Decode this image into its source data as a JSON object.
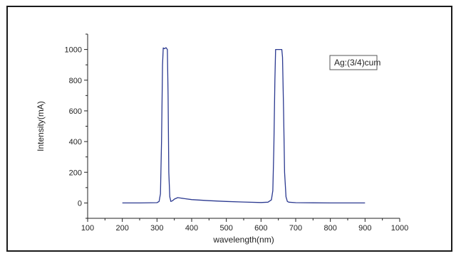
{
  "chart_data": {
    "type": "line",
    "xlabel": "wavelength(nm)",
    "ylabel": "Intensity(mA)",
    "xlim": [
      100,
      1000
    ],
    "ylim": [
      -100,
      1100
    ],
    "x_ticks": [
      100,
      200,
      300,
      400,
      500,
      600,
      700,
      800,
      900,
      1000
    ],
    "y_ticks": [
      0,
      200,
      400,
      600,
      800,
      1000
    ],
    "grid": false,
    "legend_position": "top-right",
    "series": [
      {
        "name": "Ag:(3/4)cum",
        "color": "#2b3990",
        "x": [
          200,
          250,
          300,
          306,
          310,
          313,
          316,
          318,
          322,
          326,
          330,
          332,
          334,
          337,
          340,
          345,
          350,
          360,
          380,
          400,
          450,
          500,
          550,
          600,
          620,
          630,
          634,
          637,
          640,
          642,
          660,
          662,
          665,
          668,
          672,
          676,
          680,
          700,
          750,
          800,
          850,
          900
        ],
        "y": [
          0,
          0,
          2,
          10,
          60,
          400,
          900,
          1010,
          1005,
          1012,
          1000,
          700,
          200,
          40,
          10,
          15,
          25,
          35,
          28,
          22,
          15,
          10,
          6,
          3,
          5,
          20,
          80,
          350,
          800,
          1000,
          1000,
          950,
          600,
          200,
          40,
          10,
          5,
          2,
          1,
          0,
          0,
          0
        ]
      }
    ]
  }
}
